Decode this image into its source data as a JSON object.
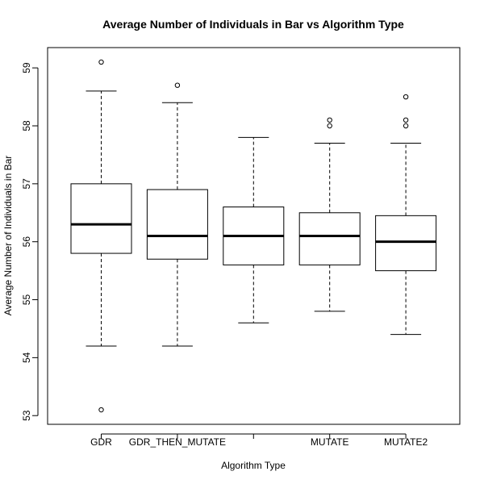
{
  "chart_data": {
    "type": "boxplot",
    "title": "Average Number of Individuals in Bar vs Algorithm Type",
    "xlabel": "Algorithm Type",
    "ylabel": "Average Number of Individuals in Bar",
    "categories": [
      "GDR",
      "GDR_THEN_MUTATE",
      "",
      "MUTATE",
      "MUTATE2"
    ],
    "ylim": [
      52.85,
      59.35
    ],
    "yticks": [
      53,
      54,
      55,
      56,
      57,
      58,
      59
    ],
    "grid": false,
    "legend": "none",
    "boxes": [
      {
        "category": "GDR",
        "whisker_low": 54.2,
        "q1": 55.8,
        "median": 56.3,
        "q3": 57.0,
        "whisker_high": 58.6,
        "outliers": [
          59.1,
          53.1
        ]
      },
      {
        "category": "GDR_THEN_MUTATE",
        "whisker_low": 54.2,
        "q1": 55.7,
        "median": 56.1,
        "q3": 56.9,
        "whisker_high": 58.4,
        "outliers": [
          58.7
        ]
      },
      {
        "category": "",
        "whisker_low": 54.6,
        "q1": 55.6,
        "median": 56.1,
        "q3": 56.6,
        "whisker_high": 57.8,
        "outliers": []
      },
      {
        "category": "MUTATE",
        "whisker_low": 54.8,
        "q1": 55.6,
        "median": 56.1,
        "q3": 56.5,
        "whisker_high": 57.7,
        "outliers": [
          58.0,
          58.1
        ]
      },
      {
        "category": "MUTATE2",
        "whisker_low": 54.4,
        "q1": 55.5,
        "median": 56.0,
        "q3": 56.45,
        "whisker_high": 57.7,
        "outliers": [
          58.0,
          58.1,
          58.5
        ]
      }
    ]
  }
}
